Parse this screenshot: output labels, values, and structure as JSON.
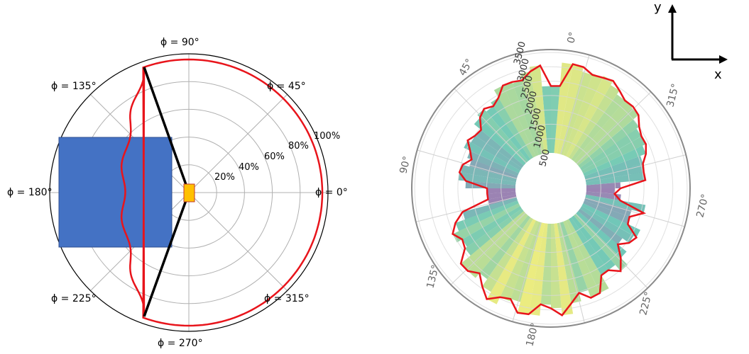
{
  "left_diagram": {
    "angle_labels": [
      "ϕ = 0°",
      "ϕ = 45°",
      "ϕ = 90°",
      "ϕ = 135°",
      "ϕ = 180°",
      "ϕ = 225°",
      "ϕ = 270°",
      "ϕ = 315°"
    ],
    "radial_labels": [
      "20%",
      "40%",
      "60%",
      "80%",
      "100%"
    ],
    "colors": {
      "pattern": "#e8141b",
      "beam": "#000000",
      "block": "#4472c4",
      "source": "#ffc000"
    }
  },
  "right_diagram": {
    "angle_labels": [
      "0°",
      "45°",
      "90°",
      "135°",
      "180°",
      "225°",
      "270°",
      "315°"
    ],
    "radial_labels": [
      "500",
      "1000",
      "1500",
      "2000",
      "2500",
      "3000",
      "3500"
    ],
    "colors": {
      "outline": "#e8141b",
      "low": "#7a5a9a",
      "mid": "#41b6a0",
      "high": "#f0e850"
    }
  },
  "axes_indicator": {
    "x_label": "x",
    "y_label": "y"
  }
}
